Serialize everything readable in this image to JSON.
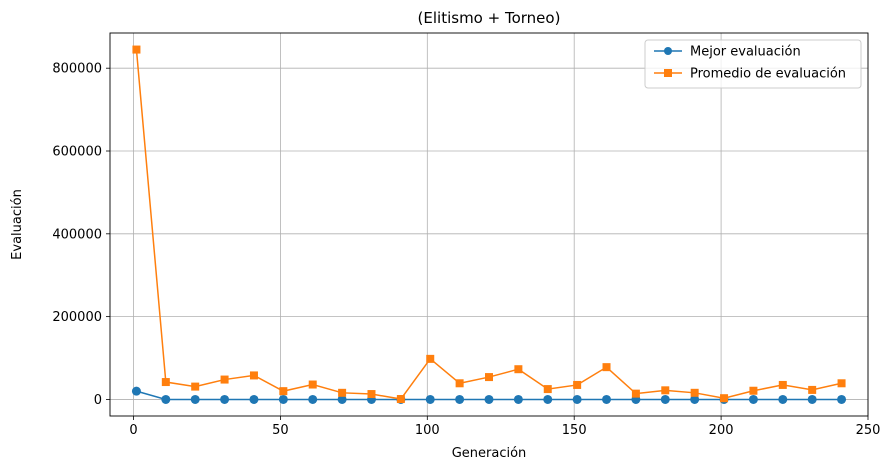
{
  "chart_data": {
    "type": "line",
    "title": "(Elitismo + Torneo)",
    "xlabel": "Generación",
    "ylabel": "Evaluación",
    "xlim": [
      -8,
      250
    ],
    "ylim": [
      -40000,
      885000
    ],
    "xticks": [
      0,
      50,
      100,
      150,
      200,
      250
    ],
    "yticks": [
      0,
      200000,
      400000,
      600000,
      800000
    ],
    "grid": true,
    "legend_position": "top-right",
    "x": [
      1,
      11,
      21,
      31,
      41,
      51,
      61,
      71,
      81,
      91,
      101,
      111,
      121,
      131,
      141,
      151,
      161,
      171,
      181,
      191,
      201,
      211,
      221,
      231,
      241
    ],
    "series": [
      {
        "name": "Mejor evaluación",
        "color": "#1f77b4",
        "marker": "circle",
        "values": [
          20000,
          0,
          0,
          0,
          0,
          0,
          0,
          0,
          0,
          0,
          0,
          0,
          0,
          0,
          0,
          0,
          0,
          0,
          0,
          0,
          0,
          0,
          0,
          0,
          0
        ]
      },
      {
        "name": "Promedio de evaluación",
        "color": "#ff7f0e",
        "marker": "square",
        "values": [
          845000,
          42000,
          31000,
          48000,
          58000,
          20000,
          36000,
          16000,
          13000,
          1000,
          98000,
          39000,
          54000,
          73000,
          25000,
          35000,
          78000,
          14000,
          22000,
          16000,
          3000,
          21000,
          35000,
          23000,
          39000
        ]
      }
    ]
  }
}
